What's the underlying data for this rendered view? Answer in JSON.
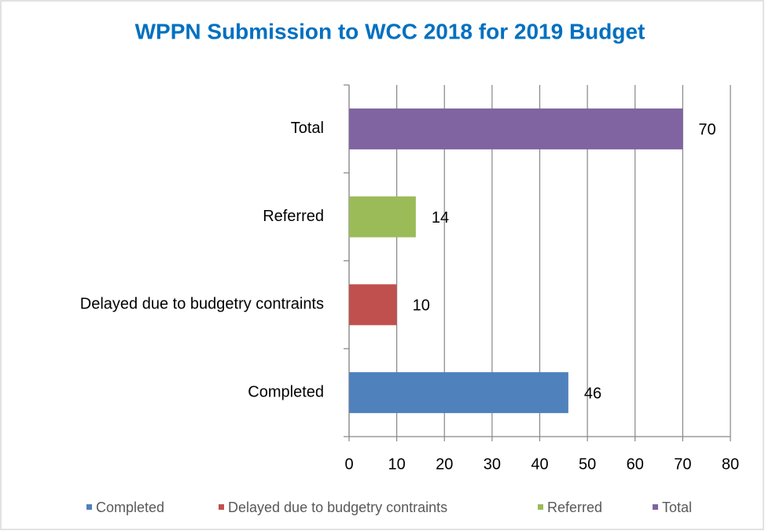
{
  "chart_data": {
    "type": "bar",
    "orientation": "horizontal",
    "title": "WPPN Submission to WCC 2018 for 2019 Budget",
    "categories": [
      "Completed",
      "Delayed due to budgetry contraints",
      "Referred",
      "Total"
    ],
    "values": [
      46,
      10,
      14,
      70
    ],
    "colors": [
      "#4f81bd",
      "#c0504d",
      "#9bbb59",
      "#8064a2"
    ],
    "xlim": [
      0,
      80
    ],
    "xticks": [
      0,
      10,
      20,
      30,
      40,
      50,
      60,
      70,
      80
    ],
    "grid": true,
    "legend": "bottom"
  }
}
